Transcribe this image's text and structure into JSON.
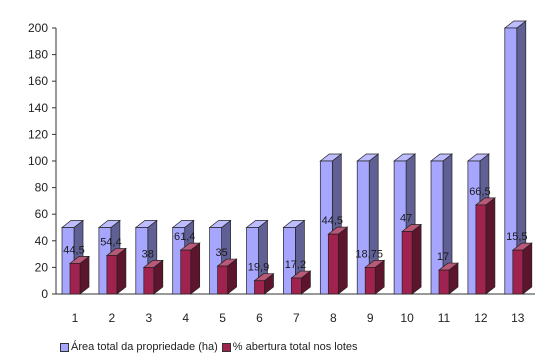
{
  "chart_data": {
    "type": "bar",
    "categories": [
      "1",
      "2",
      "3",
      "4",
      "5",
      "6",
      "7",
      "8",
      "9",
      "10",
      "11",
      "12",
      "13"
    ],
    "series": [
      {
        "name": "Área total da propriedade (ha)",
        "color": "#a6a6ff",
        "values": [
          50,
          50,
          50,
          50,
          50,
          50,
          50,
          100,
          100,
          100,
          100,
          100,
          200
        ]
      },
      {
        "name": "% abertura total  nos lotes",
        "color": "#a0224e",
        "values": [
          23,
          29,
          20,
          33,
          21,
          10,
          12,
          45,
          20,
          47,
          18,
          67,
          33
        ]
      }
    ],
    "data_labels": [
      "44,5",
      "54,4",
      "38",
      "61,4",
      "35",
      "19,9",
      "17,2",
      "44,5",
      "18,75",
      "47",
      "17",
      "66,5",
      "15,5"
    ],
    "yticks": [
      "0",
      "20",
      "40",
      "60",
      "80",
      "100",
      "120",
      "140",
      "160",
      "180",
      "200"
    ],
    "ylim": [
      0,
      200
    ],
    "grid": false,
    "legend_position": "bottom"
  }
}
